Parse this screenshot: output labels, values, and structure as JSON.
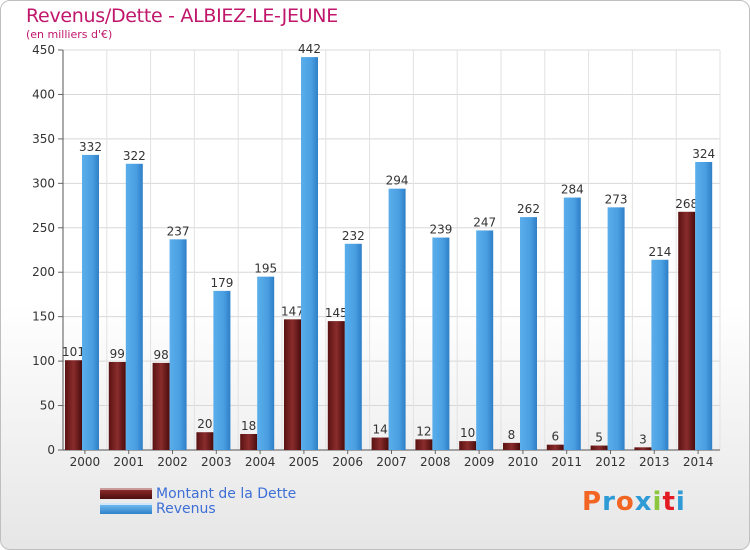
{
  "header": {
    "title": "Revenus/Dette - ALBIEZ-LE-JEUNE",
    "subtitle": "(en milliers d'€)"
  },
  "logo": {
    "text": "Proxiti",
    "colors": [
      "#f26522",
      "#2e9bd6",
      "#f26522",
      "#2e9bd6",
      "#8dc63f",
      "#e31b23",
      "#2e9bd6"
    ]
  },
  "chart_data": {
    "type": "bar",
    "title": "Revenus/Dette - ALBIEZ-LE-JEUNE",
    "subtitle": "(en milliers d'€)",
    "categories": [
      "2000",
      "2001",
      "2002",
      "2003",
      "2004",
      "2005",
      "2006",
      "2007",
      "2008",
      "2009",
      "2010",
      "2011",
      "2012",
      "2013",
      "2014"
    ],
    "series": [
      {
        "name": "Montant de la Dette",
        "color": "#6e1a1a",
        "values": [
          101,
          99,
          98,
          20,
          18,
          147,
          145,
          14,
          12,
          10,
          8,
          6,
          5,
          3,
          268
        ]
      },
      {
        "name": "Revenus",
        "color": "#4fa3e6",
        "values": [
          332,
          322,
          237,
          179,
          195,
          442,
          232,
          294,
          239,
          247,
          262,
          284,
          273,
          214,
          324
        ]
      }
    ],
    "ylim": [
      0,
      450
    ],
    "yticks": [
      0,
      50,
      100,
      150,
      200,
      250,
      300,
      350,
      400,
      450
    ],
    "grid": true,
    "legend": "bottom-left"
  }
}
